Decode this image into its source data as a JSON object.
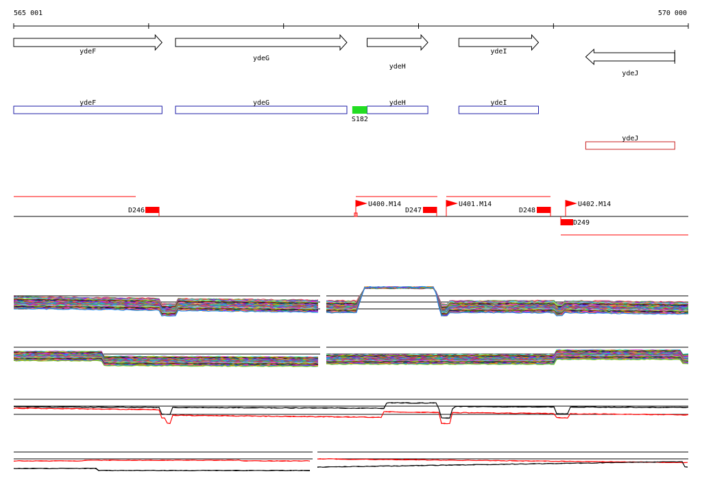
{
  "ruler": {
    "start_label": "565 001",
    "end_label": "570 000",
    "start": 565001,
    "end": 570000,
    "tick_interval": 1000
  },
  "genes": [
    {
      "name": "ydeF",
      "strand": "+",
      "start": 565001,
      "end": 566100
    },
    {
      "name": "ydeG",
      "strand": "+",
      "start": 566200,
      "end": 567470
    },
    {
      "name": "ydeH",
      "strand": "+",
      "start": 567620,
      "end": 568070
    },
    {
      "name": "ydeI",
      "strand": "+",
      "start": 568300,
      "end": 568890
    },
    {
      "name": "ydeJ",
      "strand": "-",
      "start": 569240,
      "end": 569900
    }
  ],
  "cds_boxes": [
    {
      "name": "ydeF",
      "start": 565001,
      "end": 566100,
      "color": "#1a1aa6"
    },
    {
      "name": "ydeG",
      "start": 566200,
      "end": 567470,
      "color": "#1a1aa6"
    },
    {
      "name": "ydeH",
      "start": 567620,
      "end": 568070,
      "color": "#1a1aa6"
    },
    {
      "name": "ydeI",
      "start": 568300,
      "end": 568890,
      "color": "#1a1aa6"
    },
    {
      "name": "ydeJ",
      "start": 569240,
      "end": 569900,
      "color": "#c81e1e",
      "row": 2
    }
  ],
  "features": [
    {
      "name": "S182",
      "start": 567510,
      "end": 567620,
      "color": "#22dd22"
    }
  ],
  "colors": {
    "highlight": "#ff0000",
    "accent_green": "#22dd22",
    "box_blue": "#1a1aa6",
    "box_red": "#c81e1e"
  },
  "annotations": {
    "d_labels": [
      "D246",
      "D247",
      "D248",
      "D249"
    ],
    "u_labels": [
      "U400.M14",
      "U401.M14",
      "U402.M14"
    ]
  }
}
